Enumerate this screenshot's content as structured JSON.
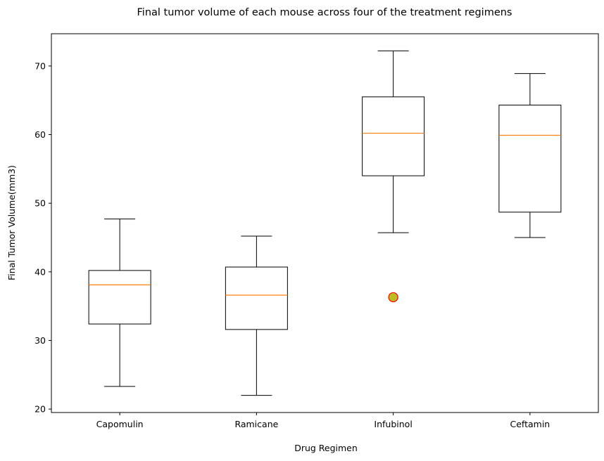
{
  "chart_data": {
    "type": "box",
    "title": "Final tumor volume of each mouse across four of the treatment regimens",
    "xlabel": "Drug Regimen",
    "ylabel": "Final Tumor Volume(mm3)",
    "ylim": [
      19.5,
      74.7
    ],
    "yticks": [
      "20",
      "30",
      "40",
      "50",
      "60",
      "70"
    ],
    "grid": false,
    "colors": {
      "box": "#000000",
      "median": "#ff7f0e",
      "outlier_fill": "#bcbd22",
      "outlier_edge": "#ff0000"
    },
    "boxes": [
      {
        "category": "Capomulin",
        "whisker_low": 23.3,
        "q1": 32.4,
        "median": 38.1,
        "q3": 40.2,
        "whisker_high": 47.7,
        "outliers": []
      },
      {
        "category": "Ramicane",
        "whisker_low": 22.0,
        "q1": 31.6,
        "median": 36.6,
        "q3": 40.7,
        "whisker_high": 45.2,
        "outliers": []
      },
      {
        "category": "Infubinol",
        "whisker_low": 45.7,
        "q1": 54.0,
        "median": 60.2,
        "q3": 65.5,
        "whisker_high": 72.2,
        "outliers": [
          36.3
        ]
      },
      {
        "category": "Ceftamin",
        "whisker_low": 45.0,
        "q1": 48.7,
        "median": 59.9,
        "q3": 64.3,
        "whisker_high": 68.9,
        "outliers": []
      }
    ]
  }
}
